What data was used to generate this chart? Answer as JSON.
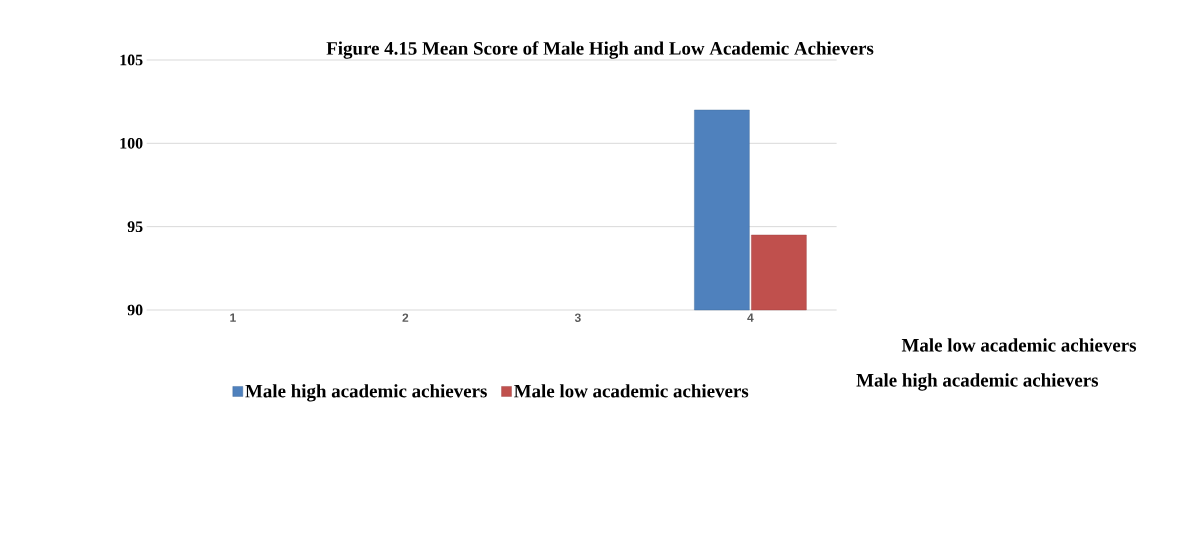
{
  "chart_data": {
    "type": "bar",
    "title": "Figure 4.15 Mean Score of Male High and Low Academic Achievers",
    "categories": [
      "1",
      "2",
      "3",
      "4"
    ],
    "series": [
      {
        "name": "Male high academic achievers",
        "color": "#4f81bd",
        "values": [
          null,
          null,
          null,
          102.0
        ]
      },
      {
        "name": "Male low academic achievers",
        "color": "#c0504d",
        "values": [
          null,
          null,
          null,
          94.5
        ]
      }
    ],
    "ylim": [
      90,
      105
    ],
    "yticks": [
      90,
      95,
      100,
      105
    ],
    "grid": "y",
    "legend": "bottom",
    "annotations": [
      "Male low academic achievers",
      "Male high academic achievers"
    ]
  }
}
